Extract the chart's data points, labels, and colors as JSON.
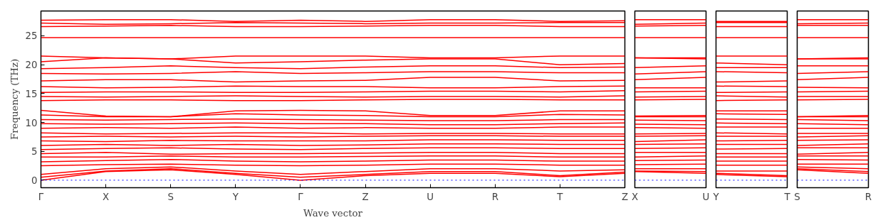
{
  "chart_data": [
    {
      "type": "line",
      "xlabel": "Wave vector",
      "ylabel": "Frequency (THz)",
      "categories": [
        "Γ",
        "X",
        "S",
        "Y",
        "Γ",
        "Z",
        "U",
        "R",
        "T",
        "Z"
      ],
      "ylim": [
        -1.3,
        29.3
      ],
      "yticks": [
        0,
        5,
        10,
        15,
        20,
        25
      ],
      "ref_lines": [
        {
          "axis": "y",
          "value": 0,
          "color": "#0000ff",
          "line_style": "dotted"
        }
      ],
      "series": [
        {
          "color": "#ff0000",
          "values": [
            0,
            1.5,
            1.8,
            1.0,
            0,
            0.8,
            1.2,
            1.2,
            0.6,
            1.2
          ]
        },
        {
          "color": "#ff0000",
          "values": [
            0.5,
            1.6,
            2.0,
            1.2,
            0.5,
            1.0,
            1.5,
            1.5,
            0.8,
            1.4
          ]
        },
        {
          "color": "#ff0000",
          "values": [
            1.0,
            2.0,
            2.3,
            1.6,
            1.0,
            1.5,
            2.0,
            2.0,
            1.6,
            1.8
          ]
        },
        {
          "color": "#ff0000",
          "values": [
            2.5,
            2.7,
            2.8,
            2.6,
            2.5,
            2.6,
            2.8,
            2.8,
            2.6,
            2.6
          ]
        },
        {
          "color": "#ff0000",
          "values": [
            3.2,
            3.4,
            3.6,
            3.3,
            3.2,
            3.3,
            3.5,
            3.5,
            3.3,
            3.3
          ]
        },
        {
          "color": "#ff0000",
          "values": [
            4.0,
            4.0,
            4.2,
            4.0,
            4.0,
            4.1,
            4.2,
            4.2,
            4.0,
            4.0
          ]
        },
        {
          "color": "#ff0000",
          "values": [
            4.6,
            4.8,
            4.5,
            4.6,
            4.6,
            4.7,
            4.8,
            4.8,
            4.6,
            4.6
          ]
        },
        {
          "color": "#ff0000",
          "values": [
            5.3,
            5.5,
            5.6,
            5.4,
            5.3,
            5.5,
            5.6,
            5.6,
            5.5,
            5.5
          ]
        },
        {
          "color": "#ff0000",
          "values": [
            6.0,
            6.2,
            6.0,
            6.2,
            6.0,
            6.1,
            6.3,
            6.3,
            6.2,
            6.2
          ]
        },
        {
          "color": "#ff0000",
          "values": [
            6.8,
            6.7,
            6.9,
            6.8,
            6.8,
            6.8,
            7.0,
            7.0,
            6.9,
            6.9
          ]
        },
        {
          "color": "#ff0000",
          "values": [
            7.5,
            7.6,
            7.5,
            7.6,
            7.5,
            7.6,
            7.7,
            7.7,
            7.6,
            7.6
          ]
        },
        {
          "color": "#ff0000",
          "values": [
            8.2,
            8.0,
            8.1,
            8.2,
            8.2,
            8.0,
            8.1,
            8.1,
            8.0,
            8.0
          ]
        },
        {
          "color": "#ff0000",
          "values": [
            9.0,
            9.1,
            9.0,
            9.2,
            9.0,
            9.1,
            9.0,
            9.0,
            9.2,
            9.2
          ]
        },
        {
          "color": "#ff0000",
          "values": [
            9.8,
            9.7,
            9.8,
            9.9,
            9.8,
            9.8,
            9.6,
            9.6,
            9.8,
            9.9
          ]
        },
        {
          "color": "#ff0000",
          "values": [
            10.5,
            10.4,
            10.5,
            10.6,
            10.5,
            10.4,
            10.3,
            10.3,
            10.5,
            10.5
          ]
        },
        {
          "color": "#ff0000",
          "values": [
            11.3,
            11.0,
            11.0,
            11.5,
            11.3,
            11.2,
            11.0,
            11.0,
            11.4,
            11.3
          ]
        },
        {
          "color": "#ff0000",
          "values": [
            12.1,
            11.1,
            11.0,
            12.0,
            12.1,
            12.0,
            11.2,
            11.2,
            12.0,
            12.0
          ]
        },
        {
          "color": "#ff0000",
          "values": [
            13.8,
            13.9,
            13.9,
            13.8,
            13.8,
            13.9,
            14.0,
            14.0,
            13.9,
            13.9
          ]
        },
        {
          "color": "#ff0000",
          "values": [
            14.5,
            14.4,
            14.5,
            14.6,
            14.5,
            14.4,
            14.5,
            14.5,
            14.4,
            14.6
          ]
        },
        {
          "color": "#ff0000",
          "values": [
            15.2,
            15.3,
            15.3,
            15.2,
            15.2,
            15.3,
            15.4,
            15.4,
            15.3,
            15.5
          ]
        },
        {
          "color": "#ff0000",
          "values": [
            16.2,
            16.0,
            16.1,
            16.3,
            16.2,
            16.2,
            16.0,
            16.0,
            16.2,
            16.3
          ]
        },
        {
          "color": "#ff0000",
          "values": [
            17.2,
            17.4,
            17.4,
            17.0,
            17.2,
            17.3,
            17.8,
            17.8,
            17.2,
            17.3
          ]
        },
        {
          "color": "#ff0000",
          "values": [
            18.5,
            18.4,
            18.5,
            18.8,
            18.5,
            18.6,
            18.8,
            18.8,
            18.6,
            18.6
          ]
        },
        {
          "color": "#ff0000",
          "values": [
            19.3,
            19.5,
            19.8,
            19.5,
            19.3,
            19.6,
            19.8,
            19.8,
            19.5,
            19.6
          ]
        },
        {
          "color": "#ff0000",
          "values": [
            20.5,
            21.2,
            21.0,
            20.3,
            20.5,
            20.8,
            21.0,
            21.0,
            20.0,
            20.2
          ]
        },
        {
          "color": "#ff0000",
          "values": [
            21.5,
            21.2,
            21.0,
            21.5,
            21.5,
            21.5,
            21.2,
            21.2,
            21.5,
            21.5
          ]
        },
        {
          "color": "#ff0000",
          "values": [
            24.7,
            24.7,
            24.7,
            24.7,
            24.7,
            24.7,
            24.7,
            24.7,
            24.7,
            24.7
          ]
        },
        {
          "color": "#ff0000",
          "values": [
            26.6,
            26.7,
            26.8,
            26.6,
            26.6,
            26.7,
            26.8,
            26.8,
            26.6,
            26.6
          ]
        },
        {
          "color": "#ff0000",
          "values": [
            27.2,
            27.0,
            27.1,
            27.3,
            27.2,
            27.1,
            27.2,
            27.2,
            27.3,
            27.3
          ]
        },
        {
          "color": "#ff0000",
          "values": [
            27.7,
            27.8,
            27.8,
            27.5,
            27.7,
            27.5,
            27.8,
            27.8,
            27.5,
            27.6
          ]
        }
      ]
    },
    {
      "type": "line",
      "ylim": [
        -1.3,
        29.3
      ],
      "tick_labels": "x",
      "categories": [
        "X",
        "U"
      ],
      "ref_lines": [
        {
          "axis": "y",
          "value": 0,
          "color": "#0000ff",
          "line_style": "dotted"
        }
      ],
      "series": [
        {
          "color": "#ff0000",
          "values": [
            1.5,
            1.2
          ]
        },
        {
          "color": "#ff0000",
          "values": [
            1.6,
            1.5
          ]
        },
        {
          "color": "#ff0000",
          "values": [
            2.0,
            2.0
          ]
        },
        {
          "color": "#ff0000",
          "values": [
            2.7,
            2.8
          ]
        },
        {
          "color": "#ff0000",
          "values": [
            3.4,
            3.5
          ]
        },
        {
          "color": "#ff0000",
          "values": [
            4.0,
            4.2
          ]
        },
        {
          "color": "#ff0000",
          "values": [
            4.8,
            4.8
          ]
        },
        {
          "color": "#ff0000",
          "values": [
            5.5,
            5.6
          ]
        },
        {
          "color": "#ff0000",
          "values": [
            6.2,
            6.3
          ]
        },
        {
          "color": "#ff0000",
          "values": [
            6.7,
            7.0
          ]
        },
        {
          "color": "#ff0000",
          "values": [
            7.6,
            7.7
          ]
        },
        {
          "color": "#ff0000",
          "values": [
            8.0,
            8.1
          ]
        },
        {
          "color": "#ff0000",
          "values": [
            9.1,
            9.0
          ]
        },
        {
          "color": "#ff0000",
          "values": [
            9.7,
            9.6
          ]
        },
        {
          "color": "#ff0000",
          "values": [
            10.4,
            10.3
          ]
        },
        {
          "color": "#ff0000",
          "values": [
            11.0,
            11.0
          ]
        },
        {
          "color": "#ff0000",
          "values": [
            11.1,
            11.2
          ]
        },
        {
          "color": "#ff0000",
          "values": [
            13.9,
            14.0
          ]
        },
        {
          "color": "#ff0000",
          "values": [
            14.4,
            14.5
          ]
        },
        {
          "color": "#ff0000",
          "values": [
            15.3,
            15.4
          ]
        },
        {
          "color": "#ff0000",
          "values": [
            16.0,
            16.0
          ]
        },
        {
          "color": "#ff0000",
          "values": [
            17.4,
            17.8
          ]
        },
        {
          "color": "#ff0000",
          "values": [
            18.4,
            18.8
          ]
        },
        {
          "color": "#ff0000",
          "values": [
            19.5,
            19.8
          ]
        },
        {
          "color": "#ff0000",
          "values": [
            21.2,
            21.0
          ]
        },
        {
          "color": "#ff0000",
          "values": [
            21.2,
            21.2
          ]
        },
        {
          "color": "#ff0000",
          "values": [
            24.7,
            24.7
          ]
        },
        {
          "color": "#ff0000",
          "values": [
            26.7,
            26.8
          ]
        },
        {
          "color": "#ff0000",
          "values": [
            27.0,
            27.2
          ]
        },
        {
          "color": "#ff0000",
          "values": [
            27.8,
            27.8
          ]
        }
      ]
    },
    {
      "type": "line",
      "ylim": [
        -1.3,
        29.3
      ],
      "tick_labels": "x",
      "categories": [
        "Y",
        "T"
      ],
      "ref_lines": [
        {
          "axis": "y",
          "value": 0,
          "color": "#0000ff",
          "line_style": "dotted"
        }
      ],
      "series": [
        {
          "color": "#ff0000",
          "values": [
            1.0,
            0.6
          ]
        },
        {
          "color": "#ff0000",
          "values": [
            1.2,
            0.8
          ]
        },
        {
          "color": "#ff0000",
          "values": [
            1.6,
            1.6
          ]
        },
        {
          "color": "#ff0000",
          "values": [
            2.6,
            2.6
          ]
        },
        {
          "color": "#ff0000",
          "values": [
            3.3,
            3.3
          ]
        },
        {
          "color": "#ff0000",
          "values": [
            4.0,
            4.0
          ]
        },
        {
          "color": "#ff0000",
          "values": [
            4.6,
            4.6
          ]
        },
        {
          "color": "#ff0000",
          "values": [
            5.4,
            5.5
          ]
        },
        {
          "color": "#ff0000",
          "values": [
            6.2,
            6.2
          ]
        },
        {
          "color": "#ff0000",
          "values": [
            6.8,
            6.9
          ]
        },
        {
          "color": "#ff0000",
          "values": [
            7.6,
            7.6
          ]
        },
        {
          "color": "#ff0000",
          "values": [
            8.2,
            8.0
          ]
        },
        {
          "color": "#ff0000",
          "values": [
            9.2,
            9.2
          ]
        },
        {
          "color": "#ff0000",
          "values": [
            9.9,
            9.8
          ]
        },
        {
          "color": "#ff0000",
          "values": [
            10.6,
            10.5
          ]
        },
        {
          "color": "#ff0000",
          "values": [
            11.5,
            11.4
          ]
        },
        {
          "color": "#ff0000",
          "values": [
            12.0,
            12.0
          ]
        },
        {
          "color": "#ff0000",
          "values": [
            13.8,
            13.9
          ]
        },
        {
          "color": "#ff0000",
          "values": [
            14.6,
            14.4
          ]
        },
        {
          "color": "#ff0000",
          "values": [
            15.2,
            15.3
          ]
        },
        {
          "color": "#ff0000",
          "values": [
            16.3,
            16.2
          ]
        },
        {
          "color": "#ff0000",
          "values": [
            17.0,
            17.2
          ]
        },
        {
          "color": "#ff0000",
          "values": [
            18.8,
            18.6
          ]
        },
        {
          "color": "#ff0000",
          "values": [
            19.5,
            19.5
          ]
        },
        {
          "color": "#ff0000",
          "values": [
            20.3,
            20.0
          ]
        },
        {
          "color": "#ff0000",
          "values": [
            21.5,
            21.5
          ]
        },
        {
          "color": "#ff0000",
          "values": [
            24.7,
            24.7
          ]
        },
        {
          "color": "#ff0000",
          "values": [
            26.6,
            26.6
          ]
        },
        {
          "color": "#ff0000",
          "values": [
            27.3,
            27.3
          ]
        },
        {
          "color": "#ff0000",
          "values": [
            27.5,
            27.5
          ]
        }
      ]
    },
    {
      "type": "line",
      "ylim": [
        -1.3,
        29.3
      ],
      "tick_labels": "x",
      "categories": [
        "S",
        "R"
      ],
      "ref_lines": [
        {
          "axis": "y",
          "value": 0,
          "color": "#0000ff",
          "line_style": "dotted"
        }
      ],
      "series": [
        {
          "color": "#ff0000",
          "values": [
            1.8,
            1.2
          ]
        },
        {
          "color": "#ff0000",
          "values": [
            2.0,
            1.5
          ]
        },
        {
          "color": "#ff0000",
          "values": [
            2.3,
            2.0
          ]
        },
        {
          "color": "#ff0000",
          "values": [
            2.8,
            2.8
          ]
        },
        {
          "color": "#ff0000",
          "values": [
            3.6,
            3.5
          ]
        },
        {
          "color": "#ff0000",
          "values": [
            4.2,
            4.2
          ]
        },
        {
          "color": "#ff0000",
          "values": [
            4.5,
            4.8
          ]
        },
        {
          "color": "#ff0000",
          "values": [
            5.6,
            5.6
          ]
        },
        {
          "color": "#ff0000",
          "values": [
            6.0,
            6.3
          ]
        },
        {
          "color": "#ff0000",
          "values": [
            6.9,
            7.0
          ]
        },
        {
          "color": "#ff0000",
          "values": [
            7.5,
            7.7
          ]
        },
        {
          "color": "#ff0000",
          "values": [
            8.1,
            8.1
          ]
        },
        {
          "color": "#ff0000",
          "values": [
            9.0,
            9.0
          ]
        },
        {
          "color": "#ff0000",
          "values": [
            9.8,
            9.6
          ]
        },
        {
          "color": "#ff0000",
          "values": [
            10.5,
            10.3
          ]
        },
        {
          "color": "#ff0000",
          "values": [
            11.0,
            11.0
          ]
        },
        {
          "color": "#ff0000",
          "values": [
            11.0,
            11.2
          ]
        },
        {
          "color": "#ff0000",
          "values": [
            13.9,
            14.0
          ]
        },
        {
          "color": "#ff0000",
          "values": [
            14.5,
            14.5
          ]
        },
        {
          "color": "#ff0000",
          "values": [
            15.3,
            15.4
          ]
        },
        {
          "color": "#ff0000",
          "values": [
            16.1,
            16.0
          ]
        },
        {
          "color": "#ff0000",
          "values": [
            17.4,
            17.8
          ]
        },
        {
          "color": "#ff0000",
          "values": [
            18.5,
            18.8
          ]
        },
        {
          "color": "#ff0000",
          "values": [
            19.8,
            19.8
          ]
        },
        {
          "color": "#ff0000",
          "values": [
            21.0,
            21.0
          ]
        },
        {
          "color": "#ff0000",
          "values": [
            21.0,
            21.2
          ]
        },
        {
          "color": "#ff0000",
          "values": [
            24.7,
            24.7
          ]
        },
        {
          "color": "#ff0000",
          "values": [
            26.8,
            26.8
          ]
        },
        {
          "color": "#ff0000",
          "values": [
            27.1,
            27.2
          ]
        },
        {
          "color": "#ff0000",
          "values": [
            27.8,
            27.8
          ]
        }
      ]
    }
  ]
}
